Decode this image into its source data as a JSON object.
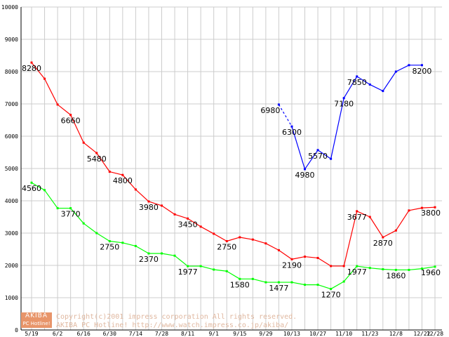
{
  "chart_data": {
    "type": "line",
    "ylim": [
      0,
      10000
    ],
    "y_ticks": [
      0,
      1000,
      2000,
      3000,
      4000,
      5000,
      6000,
      7000,
      8000,
      9000,
      10000
    ],
    "x_tick_labels": [
      "5/19",
      "6/2",
      "6/16",
      "6/30",
      "7/14",
      "7/28",
      "8/11",
      "9/1",
      "9/15",
      "9/29",
      "10/13",
      "10/27",
      "11/10",
      "11/23",
      "12/8",
      "12/22",
      "12/28"
    ],
    "grid": true,
    "series": [
      {
        "color": "#ff0000",
        "values": [
          8280,
          7780,
          6980,
          6660,
          5800,
          5480,
          4900,
          4800,
          4350,
          3980,
          3850,
          3580,
          3450,
          3200,
          2980,
          2750,
          2870,
          2800,
          2680,
          2470,
          2190,
          2270,
          2230,
          1980,
          1980,
          3677,
          3500,
          2870,
          3080,
          3700,
          3780,
          3800
        ]
      },
      {
        "color": "#00ff00",
        "values": [
          4560,
          4330,
          3770,
          3770,
          3300,
          3000,
          2750,
          2700,
          2600,
          2370,
          2370,
          2300,
          1977,
          1977,
          1870,
          1820,
          1580,
          1580,
          1477,
          1477,
          1477,
          1400,
          1400,
          1270,
          1500,
          1977,
          1920,
          1880,
          1860,
          1860,
          1900,
          1960
        ]
      },
      {
        "color": "#0000ff",
        "start_index": 19,
        "dashed_segments": [
          0
        ],
        "values": [
          6980,
          6300,
          4980,
          5570,
          5300,
          7180,
          7850,
          7600,
          7400,
          8000,
          8200,
          8200
        ]
      }
    ],
    "data_labels": [
      {
        "series": 0,
        "index": 0,
        "text": "8280"
      },
      {
        "series": 0,
        "index": 3,
        "text": "6660"
      },
      {
        "series": 0,
        "index": 5,
        "text": "5480"
      },
      {
        "series": 0,
        "index": 7,
        "text": "4800"
      },
      {
        "series": 0,
        "index": 9,
        "text": "3980"
      },
      {
        "series": 0,
        "index": 12,
        "text": "3450"
      },
      {
        "series": 0,
        "index": 15,
        "text": "2750"
      },
      {
        "series": 0,
        "index": 20,
        "text": "2190"
      },
      {
        "series": 0,
        "index": 25,
        "text": "3677"
      },
      {
        "series": 0,
        "index": 27,
        "text": "2870"
      },
      {
        "series": 0,
        "index": 31,
        "text": "3800"
      },
      {
        "series": 1,
        "index": 0,
        "text": "4560"
      },
      {
        "series": 1,
        "index": 3,
        "text": "3770"
      },
      {
        "series": 1,
        "index": 6,
        "text": "2750"
      },
      {
        "series": 1,
        "index": 9,
        "text": "2370"
      },
      {
        "series": 1,
        "index": 12,
        "text": "1977"
      },
      {
        "series": 1,
        "index": 16,
        "text": "1580"
      },
      {
        "series": 1,
        "index": 19,
        "text": "1477"
      },
      {
        "series": 1,
        "index": 23,
        "text": "1270"
      },
      {
        "series": 1,
        "index": 25,
        "text": "1977"
      },
      {
        "series": 1,
        "index": 28,
        "text": "1860"
      },
      {
        "series": 1,
        "index": 31,
        "text": "1960"
      },
      {
        "series": 2,
        "index": 0,
        "text": "6980"
      },
      {
        "series": 2,
        "index": 1,
        "text": "6300"
      },
      {
        "series": 2,
        "index": 2,
        "text": "4980"
      },
      {
        "series": 2,
        "index": 3,
        "text": "5570"
      },
      {
        "series": 2,
        "index": 5,
        "text": "7180"
      },
      {
        "series": 2,
        "index": 6,
        "text": "7850"
      },
      {
        "series": 2,
        "index": 11,
        "text": "8200"
      }
    ]
  },
  "watermark": {
    "logo_top": "AKIBA",
    "logo_bottom": "PC Hotline!",
    "line1": "Copyright(c)2001 impress corporation All rights reserved.",
    "line2": "AKIBA PC Hotline!  http://www.watch.impress.co.jp/akiba/"
  }
}
